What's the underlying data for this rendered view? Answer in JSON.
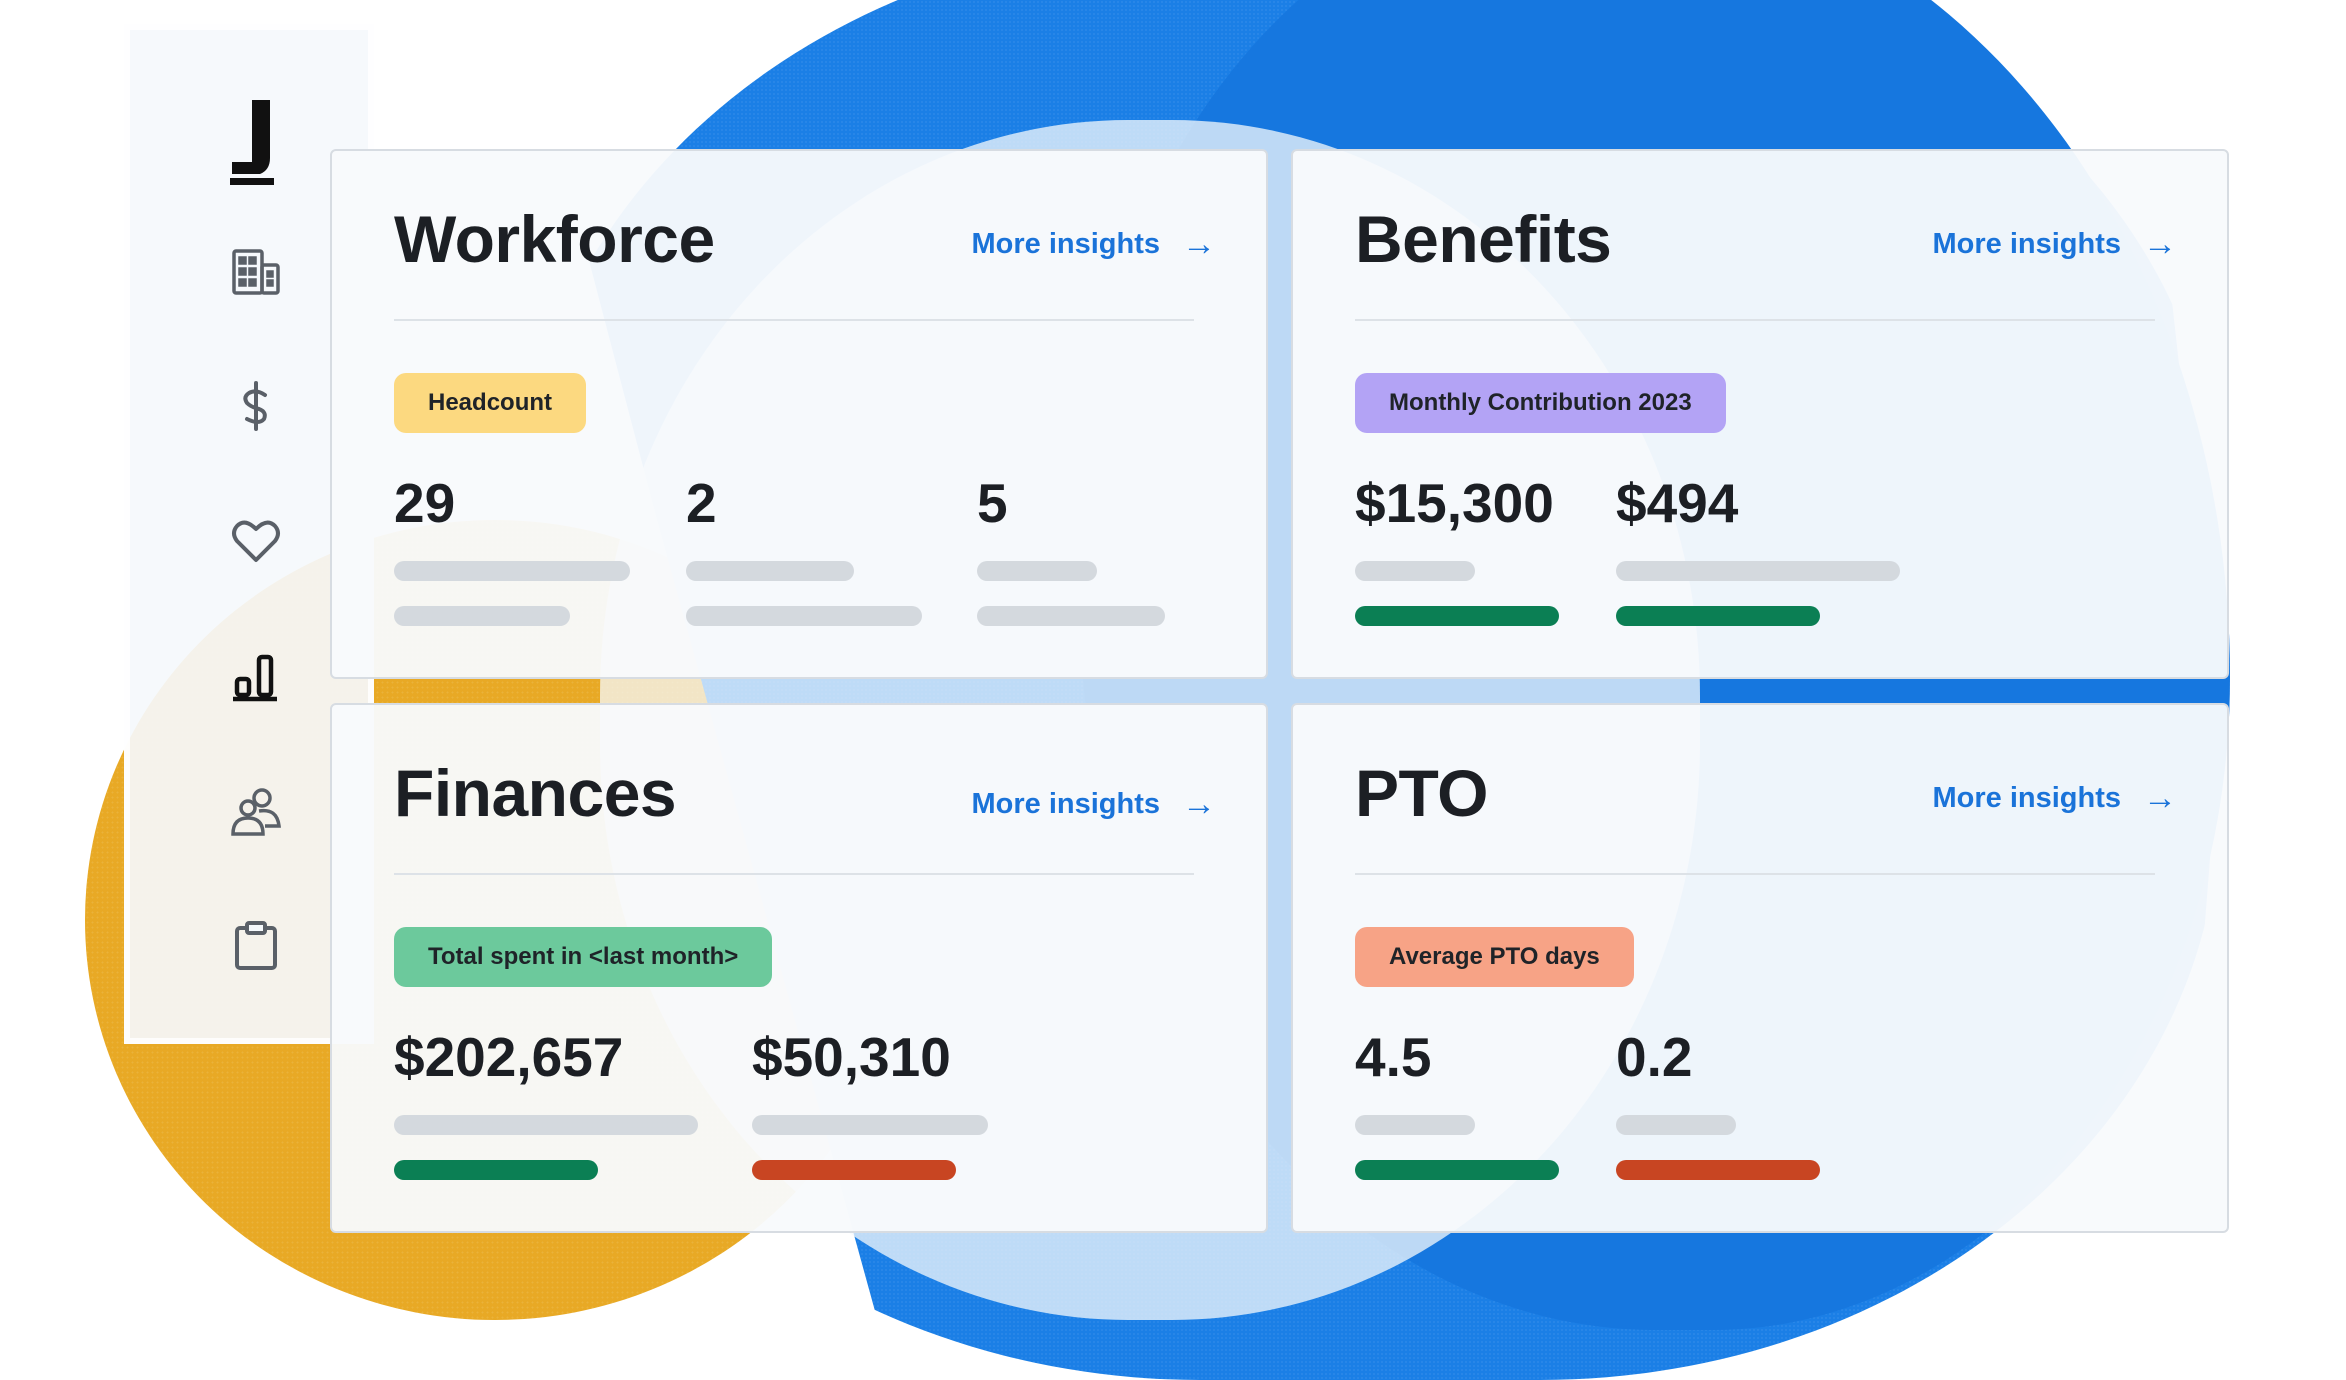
{
  "logo": {
    "letter": "J"
  },
  "sidebar": {
    "items": [
      {
        "icon": "building-icon"
      },
      {
        "icon": "dollar-icon"
      },
      {
        "icon": "heart-icon"
      },
      {
        "icon": "bar-chart-icon",
        "active": true
      },
      {
        "icon": "people-icon"
      },
      {
        "icon": "clipboard-icon"
      }
    ]
  },
  "cards": {
    "workforce": {
      "title": "Workforce",
      "link": "More insights",
      "pill": "Headcount",
      "pill_color": "#fcd980",
      "stats": [
        "29",
        "2",
        "5"
      ]
    },
    "benefits": {
      "title": "Benefits",
      "link": "More insights",
      "pill": "Monthly Contribution 2023",
      "pill_color": "#b3a3f5",
      "stats": [
        "$15,300",
        "$494"
      ]
    },
    "finances": {
      "title": "Finances",
      "link": "More insights",
      "pill": "Total spent in <last month>",
      "pill_color": "#6cc99c",
      "stats": [
        "$202,657",
        "$50,310"
      ]
    },
    "pto": {
      "title": "PTO",
      "link": "More insights",
      "pill": "Average PTO days",
      "pill_color": "#f7a386",
      "stats": [
        "4.5",
        "0.2"
      ]
    }
  },
  "colors": {
    "link": "#1a73d9",
    "positive_bar": "#0b7f54",
    "negative_bar": "#c84522",
    "placeholder_bar": "#d4d9de",
    "background_blue": "#1b7fe6",
    "background_yellow": "#e8a925"
  }
}
